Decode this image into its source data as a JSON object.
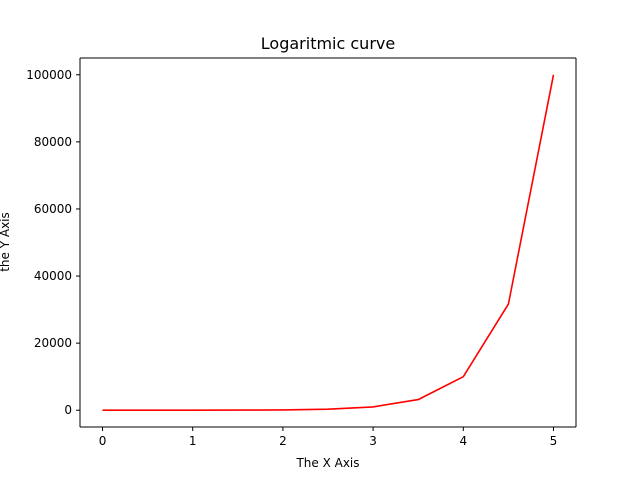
{
  "chart_data": {
    "type": "line",
    "title": "Logaritmic curve",
    "xlabel": "The X Axis",
    "ylabel": "the Y Axis",
    "xlim": [
      -0.25,
      5.25
    ],
    "ylim": [
      -5000,
      105000
    ],
    "grid": false,
    "x_ticks": [
      0,
      1,
      2,
      3,
      4,
      5
    ],
    "y_ticks": [
      0,
      20000,
      40000,
      60000,
      80000,
      100000
    ],
    "x_tick_labels": [
      "0",
      "1",
      "2",
      "3",
      "4",
      "5"
    ],
    "y_tick_labels": [
      "0",
      "20000",
      "40000",
      "60000",
      "80000",
      "100000"
    ],
    "series": [
      {
        "color": "#ff0000",
        "x": [
          0,
          0.5,
          1,
          1.5,
          2,
          2.5,
          3,
          3.5,
          4,
          4.5,
          5
        ],
        "y": [
          1,
          3,
          10,
          32,
          100,
          316,
          1000,
          3162,
          10000,
          31623,
          100000
        ]
      }
    ]
  }
}
